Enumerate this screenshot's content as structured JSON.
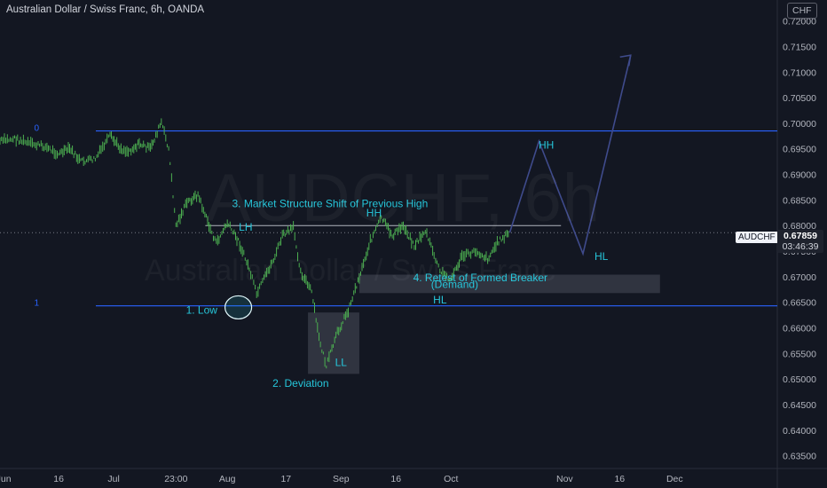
{
  "header": {
    "title": "Australian Dollar / Swiss Franc, 6h, OANDA",
    "currency": "CHF"
  },
  "watermark": {
    "symbol": "AUDCHF, 6h",
    "description": "Australian Dollar / Swiss Franc"
  },
  "price_label": {
    "symbol": "AUDCHF",
    "price": "0.67859",
    "countdown": "03:46:39"
  },
  "colors": {
    "background": "#131722",
    "candle": "#4caf50",
    "fib_line": "#2962ff",
    "annotation_text": "#26c6da",
    "projection": "#3f4b8c",
    "zone": "#363a45",
    "axis_text": "#b2b5be"
  },
  "chart_data": {
    "type": "line",
    "timeframe": "6h",
    "y_axis": {
      "position": "right",
      "ticks": [
        "0.72000",
        "0.71500",
        "0.71000",
        "0.70500",
        "0.70000",
        "0.69500",
        "0.69000",
        "0.68500",
        "0.68000",
        "0.67500",
        "0.67000",
        "0.66500",
        "0.66000",
        "0.65500",
        "0.65000",
        "0.64500",
        "0.64000",
        "0.63500"
      ],
      "range": [
        0.6325,
        0.7241
      ]
    },
    "x_axis": {
      "ticks": [
        "Jun",
        "16",
        "Jul",
        "23:00",
        "Aug",
        "17",
        "Sep",
        "16",
        "Oct",
        "Nov",
        "16",
        "Dec"
      ],
      "range": [
        "2023-05-31",
        "2023-12-29"
      ]
    },
    "series": [
      {
        "values": [
          [
            "2023-05-31",
            0.6965
          ],
          [
            "2023-06-04",
            0.697
          ],
          [
            "2023-06-08",
            0.696
          ],
          [
            "2023-06-12",
            0.6955
          ],
          [
            "2023-06-16",
            0.694
          ],
          [
            "2023-06-19",
            0.695
          ],
          [
            "2023-06-22",
            0.6925
          ],
          [
            "2023-06-26",
            0.693
          ],
          [
            "2023-06-30",
            0.6975
          ],
          [
            "2023-07-03",
            0.695
          ],
          [
            "2023-07-05",
            0.6945
          ],
          [
            "2023-07-08",
            0.696
          ],
          [
            "2023-07-11",
            0.695
          ],
          [
            "2023-07-14",
            0.7002
          ],
          [
            "2023-07-16",
            0.695
          ],
          [
            "2023-07-18",
            0.68
          ],
          [
            "2023-07-21",
            0.6845
          ],
          [
            "2023-07-24",
            0.686
          ],
          [
            "2023-07-27",
            0.68
          ],
          [
            "2023-07-29",
            0.6765
          ],
          [
            "2023-08-01",
            0.6805
          ],
          [
            "2023-08-04",
            0.677
          ],
          [
            "2023-08-07",
            0.6715
          ],
          [
            "2023-08-09",
            0.6665
          ],
          [
            "2023-08-11",
            0.6695
          ],
          [
            "2023-08-14",
            0.674
          ],
          [
            "2023-08-16",
            0.678
          ],
          [
            "2023-08-19",
            0.6795
          ],
          [
            "2023-08-21",
            0.671
          ],
          [
            "2023-08-24",
            0.667
          ],
          [
            "2023-08-26",
            0.658
          ],
          [
            "2023-08-28",
            0.6525
          ],
          [
            "2023-08-31",
            0.659
          ],
          [
            "2023-09-03",
            0.6635
          ],
          [
            "2023-09-06",
            0.67
          ],
          [
            "2023-09-09",
            0.677
          ],
          [
            "2023-09-12",
            0.6815
          ],
          [
            "2023-09-15",
            0.678
          ],
          [
            "2023-09-18",
            0.68
          ],
          [
            "2023-09-21",
            0.676
          ],
          [
            "2023-09-24",
            0.679
          ],
          [
            "2023-09-28",
            0.671
          ],
          [
            "2023-10-01",
            0.6695
          ],
          [
            "2023-10-04",
            0.674
          ],
          [
            "2023-10-08",
            0.675
          ],
          [
            "2023-10-11",
            0.6735
          ],
          [
            "2023-10-14",
            0.677
          ],
          [
            "2023-10-17",
            0.6786
          ]
        ]
      }
    ],
    "levels": [
      {
        "label": "0",
        "y": 0.6985
      },
      {
        "label": "1",
        "y": 0.6643
      },
      {
        "y": 0.68,
        "x": [
          "2023-07-26",
          "2023-10-31"
        ]
      }
    ],
    "zones": [
      {
        "x": [
          "2023-08-23",
          "2023-09-06"
        ],
        "y": [
          0.651,
          0.663
        ]
      },
      {
        "x": [
          "2023-09-06",
          "2023-11-27"
        ],
        "y": [
          0.6668,
          0.6704
        ]
      }
    ],
    "projection": [
      [
        "2023-10-17",
        0.6786
      ],
      [
        "2023-10-25",
        0.6965
      ],
      [
        "2023-11-06",
        0.6745
      ],
      [
        "2023-11-19",
        0.7133
      ]
    ],
    "highlight_circle": {
      "center": [
        "2023-08-04",
        0.664
      ]
    },
    "annotations": [
      {
        "text": "3. Market Structure Shift of Previous High",
        "x": "2023-08-29",
        "y": 0.6836
      },
      {
        "text": "HH",
        "x": "2023-09-10",
        "y": 0.6818
      },
      {
        "text": "LH",
        "x": "2023-08-06",
        "y": 0.679
      },
      {
        "text": "HH",
        "x": "2023-10-27",
        "y": 0.695
      },
      {
        "text": "HL",
        "x": "2023-11-11",
        "y": 0.6733
      },
      {
        "text": "1. Low",
        "x": "2023-07-25",
        "y": 0.6628
      },
      {
        "text": "2. Deviation",
        "x": "2023-08-21",
        "y": 0.6485
      },
      {
        "text": "LL",
        "x": "2023-09-01",
        "y": 0.6525
      },
      {
        "text": "4. Retest of Formed Breaker",
        "x": "2023-10-09",
        "y": 0.6691
      },
      {
        "text": "(Demand)",
        "x": "2023-10-02",
        "y": 0.6678
      },
      {
        "text": "HL",
        "x": "2023-09-28",
        "y": 0.6648
      },
      {
        "text": "0",
        "x": "2023-06-10",
        "y": 0.6985
      },
      {
        "text": "1",
        "x": "2023-06-10",
        "y": 0.6643
      }
    ]
  }
}
